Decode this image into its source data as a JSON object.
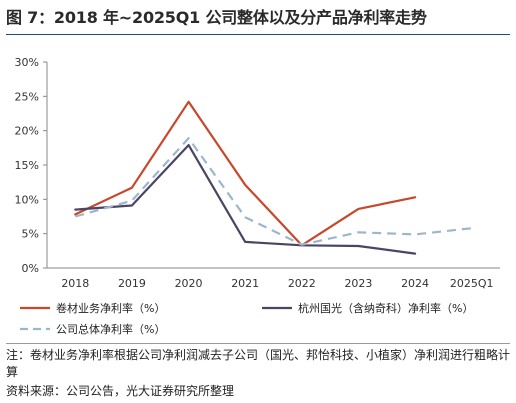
{
  "figure": {
    "title": "图 7：2018 年~2025Q1 公司整体以及分产品净利率走势",
    "note": "注：卷材业务净利率根据公司净利润减去子公司（国光、邦怡科技、小植家）净利润进行粗略计算",
    "source": "资料来源：公司公告，光大证券研究所整理"
  },
  "colors": {
    "title_rule": "#1f4e79",
    "axis": "#888888",
    "grid": "#d9d9d9"
  },
  "chart_data": {
    "type": "line",
    "categories": [
      "2018",
      "2019",
      "2020",
      "2021",
      "2022",
      "2023",
      "2024",
      "2025Q1"
    ],
    "ylim": [
      0,
      30
    ],
    "yticks": [
      0,
      5,
      10,
      15,
      20,
      25,
      30
    ],
    "ytick_labels": [
      "0%",
      "5%",
      "10%",
      "15%",
      "20%",
      "25%",
      "30%"
    ],
    "title": "",
    "xlabel": "",
    "ylabel": "",
    "legend_position": "bottom",
    "series": [
      {
        "name": "卷材业务净利率（%）",
        "color": "#c9472b",
        "style": "solid",
        "values": [
          7.8,
          11.7,
          24.2,
          12.1,
          3.3,
          8.6,
          10.3,
          null
        ]
      },
      {
        "name": "杭州国光（含纳奇科）净利率（%）",
        "color": "#4a4565",
        "style": "solid",
        "values": [
          8.5,
          9.1,
          17.9,
          3.8,
          3.3,
          3.2,
          2.1,
          null
        ]
      },
      {
        "name": "公司总体净利率（%）",
        "color": "#9ab7cb",
        "style": "dashed",
        "values": [
          7.5,
          9.8,
          18.9,
          7.4,
          3.4,
          5.2,
          4.9,
          5.8
        ]
      }
    ]
  }
}
